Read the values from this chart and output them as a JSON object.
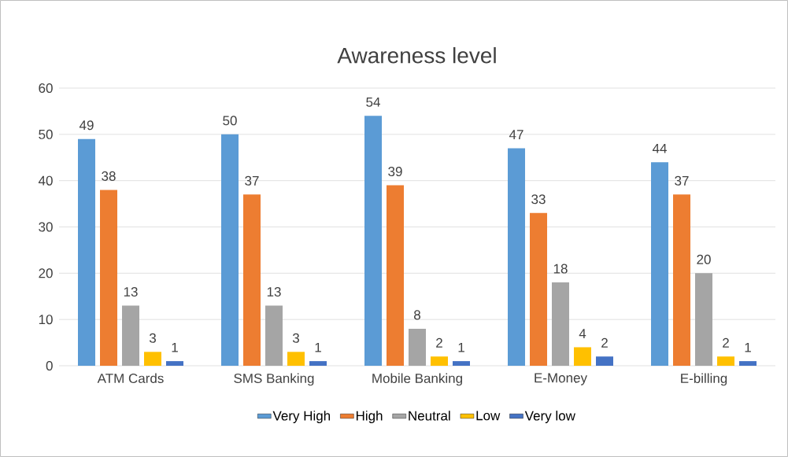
{
  "chart_data": {
    "type": "bar",
    "title": "Awareness level",
    "categories": [
      "ATM Cards",
      "SMS Banking",
      "Mobile Banking",
      "E-Money",
      "E-billing"
    ],
    "series": [
      {
        "name": "Very High",
        "color": "#5b9bd5",
        "values": [
          49,
          50,
          54,
          47,
          44
        ]
      },
      {
        "name": "High",
        "color": "#ed7d31",
        "values": [
          38,
          37,
          39,
          33,
          37
        ]
      },
      {
        "name": "Neutral",
        "color": "#a5a5a5",
        "values": [
          13,
          13,
          8,
          18,
          20
        ]
      },
      {
        "name": "Low",
        "color": "#ffc000",
        "values": [
          3,
          3,
          2,
          4,
          2
        ]
      },
      {
        "name": "Very low",
        "color": "#4472c4",
        "values": [
          1,
          1,
          1,
          2,
          1
        ]
      }
    ],
    "ylim": [
      0,
      60
    ],
    "yticks": [
      0,
      10,
      20,
      30,
      40,
      50,
      60
    ],
    "grid": "y",
    "legend": "bottom",
    "data_labels": true
  }
}
